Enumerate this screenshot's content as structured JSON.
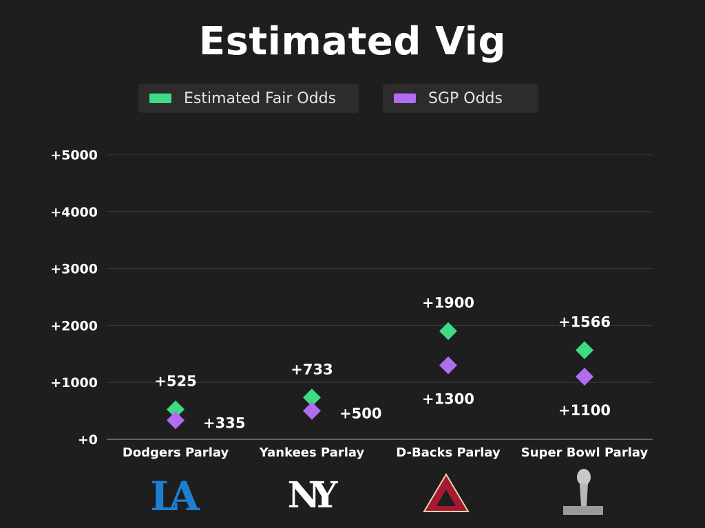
{
  "chart_data": {
    "type": "scatter",
    "title": "Estimated Vig",
    "categories": [
      "Dodgers Parlay",
      "Yankees Parlay",
      "D-Backs Parlay",
      "Super Bowl Parlay"
    ],
    "series": [
      {
        "name": "Estimated Fair Odds",
        "color": "#3ddc84",
        "values": [
          525,
          733,
          1900,
          1566
        ],
        "labels": [
          "+525",
          "+733",
          "+1900",
          "+1566"
        ]
      },
      {
        "name": "SGP Odds",
        "color": "#b26cf2",
        "values": [
          335,
          500,
          1300,
          1100
        ],
        "labels": [
          "+335",
          "+500",
          "+1300",
          "+1100"
        ]
      }
    ],
    "ylim": [
      0,
      5000
    ],
    "yticks": [
      0,
      1000,
      2000,
      3000,
      4000,
      5000
    ],
    "ytick_labels": [
      "+0",
      "+1000",
      "+2000",
      "+3000",
      "+4000",
      "+5000"
    ],
    "grid": true,
    "legend": "top",
    "xlabel": "",
    "ylabel": ""
  },
  "logos": [
    {
      "name": "dodgers-la-logo",
      "text": "LA",
      "color": "#1d7fd1"
    },
    {
      "name": "yankees-ny-logo",
      "text": "NY",
      "color": "#ffffff"
    },
    {
      "name": "dbacks-a-logo",
      "text": "A",
      "color": "#a71930"
    },
    {
      "name": "super-bowl-trophy-logo",
      "text": "SUPER BOWL",
      "color": "#c0c0c0"
    }
  ]
}
